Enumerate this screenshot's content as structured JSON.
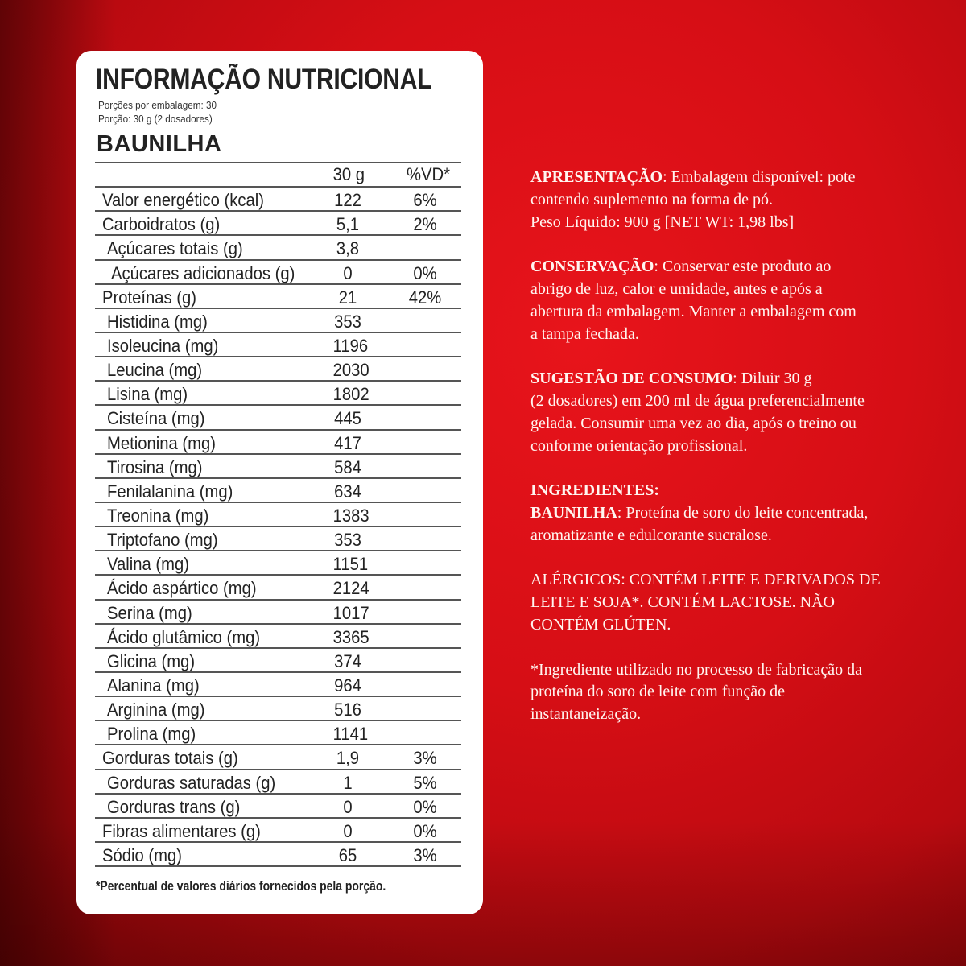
{
  "label": {
    "title": "INFORMAÇÃO NUTRICIONAL",
    "servings_per_package": "Porções por embalagem: 30",
    "serving_size": "Porção: 30 g (2 dosadores)",
    "flavor": "BAUNILHA",
    "col_amount": "30 g",
    "col_dv": "%VD*",
    "rows": [
      {
        "name": "Valor energético (kcal)",
        "amount": "122",
        "dv": "6%",
        "indent": 0
      },
      {
        "name": "Carboidratos (g)",
        "amount": "5,1",
        "dv": "2%",
        "indent": 0
      },
      {
        "name": "Açúcares totais (g)",
        "amount": "3,8",
        "dv": "",
        "indent": 1
      },
      {
        "name": "Açúcares adicionados (g)",
        "amount": "0",
        "dv": "0%",
        "indent": 2
      },
      {
        "name": "Proteínas (g)",
        "amount": "21",
        "dv": "42%",
        "indent": 0
      },
      {
        "name": "Histidina (mg)",
        "amount": "353",
        "dv": "",
        "indent": 1
      },
      {
        "name": "Isoleucina (mg)",
        "amount": "1196",
        "dv": "",
        "indent": 1
      },
      {
        "name": "Leucina (mg)",
        "amount": "2030",
        "dv": "",
        "indent": 1
      },
      {
        "name": "Lisina (mg)",
        "amount": "1802",
        "dv": "",
        "indent": 1
      },
      {
        "name": "Cisteína (mg)",
        "amount": "445",
        "dv": "",
        "indent": 1
      },
      {
        "name": "Metionina (mg)",
        "amount": "417",
        "dv": "",
        "indent": 1
      },
      {
        "name": "Tirosina (mg)",
        "amount": "584",
        "dv": "",
        "indent": 1
      },
      {
        "name": "Fenilalanina (mg)",
        "amount": "634",
        "dv": "",
        "indent": 1
      },
      {
        "name": "Treonina (mg)",
        "amount": "1383",
        "dv": "",
        "indent": 1
      },
      {
        "name": "Triptofano (mg)",
        "amount": "353",
        "dv": "",
        "indent": 1
      },
      {
        "name": "Valina (mg)",
        "amount": "1151",
        "dv": "",
        "indent": 1
      },
      {
        "name": "Ácido aspártico (mg)",
        "amount": "2124",
        "dv": "",
        "indent": 1
      },
      {
        "name": "Serina (mg)",
        "amount": "1017",
        "dv": "",
        "indent": 1
      },
      {
        "name": "Ácido glutâmico (mg)",
        "amount": "3365",
        "dv": "",
        "indent": 1
      },
      {
        "name": "Glicina (mg)",
        "amount": "374",
        "dv": "",
        "indent": 1
      },
      {
        "name": "Alanina (mg)",
        "amount": "964",
        "dv": "",
        "indent": 1
      },
      {
        "name": "Arginina (mg)",
        "amount": "516",
        "dv": "",
        "indent": 1
      },
      {
        "name": "Prolina (mg)",
        "amount": "1141",
        "dv": "",
        "indent": 1
      },
      {
        "name": "Gorduras totais (g)",
        "amount": "1,9",
        "dv": "3%",
        "indent": 0
      },
      {
        "name": "Gorduras saturadas (g)",
        "amount": "1",
        "dv": "5%",
        "indent": 1
      },
      {
        "name": "Gorduras trans (g)",
        "amount": "0",
        "dv": "0%",
        "indent": 1
      },
      {
        "name": "Fibras alimentares (g)",
        "amount": "0",
        "dv": "0%",
        "indent": 0
      },
      {
        "name": "Sódio (mg)",
        "amount": "65",
        "dv": "3%",
        "indent": 0
      }
    ],
    "footnote": "*Percentual de valores diários fornecidos pela porção."
  },
  "info": [
    {
      "lines": [
        [
          "APRESENTAÇÃO",
          ": Embalagem disponível: pote"
        ],
        [
          "",
          "contendo suplemento na forma de pó."
        ],
        [
          "",
          "Peso Líquido: 900 g [NET WT: 1,98 lbs]"
        ]
      ]
    },
    {
      "lines": [
        [
          "CONSERVAÇÃO",
          ": Conservar este produto ao"
        ],
        [
          "",
          "abrigo de luz, calor e umidade, antes e após a"
        ],
        [
          "",
          "abertura da embalagem. Manter a embalagem com"
        ],
        [
          "",
          "a tampa fechada."
        ]
      ]
    },
    {
      "lines": [
        [
          "SUGESTÃO DE CONSUMO",
          ": Diluir 30 g"
        ],
        [
          "",
          "(2 dosadores) em 200 ml de água preferencialmente"
        ],
        [
          "",
          "gelada. Consumir uma vez ao dia, após o treino ou"
        ],
        [
          "",
          "conforme orientação profissional."
        ]
      ]
    },
    {
      "lines": [
        [
          "INGREDIENTES:",
          ""
        ],
        [
          "BAUNILHA",
          ": Proteína de soro do leite concentrada,"
        ],
        [
          "",
          "aromatizante e edulcorante sucralose."
        ]
      ]
    },
    {
      "lines": [
        [
          "",
          "ALÉRGICOS: CONTÉM LEITE E DERIVADOS DE"
        ],
        [
          "",
          "LEITE E SOJA*. CONTÉM LACTOSE.  NÃO"
        ],
        [
          "",
          "CONTÉM GLÚTEN."
        ]
      ]
    },
    {
      "lines": [
        [
          "",
          "*Ingrediente utilizado no processo de fabricação da"
        ],
        [
          "",
          "proteína do soro de leite com função de"
        ],
        [
          "",
          "instantaneização."
        ]
      ]
    }
  ]
}
